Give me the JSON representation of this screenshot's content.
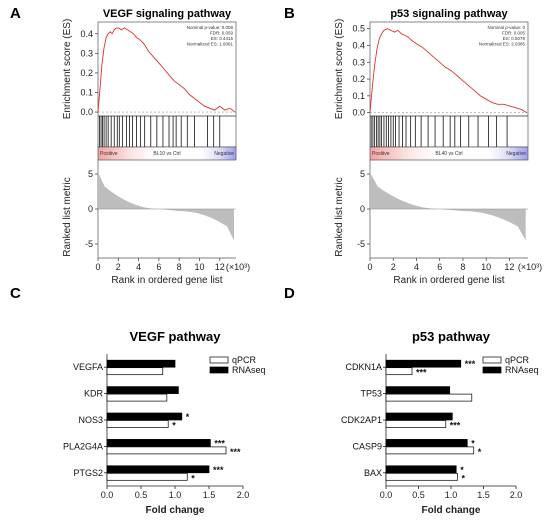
{
  "chart_data": [
    {
      "panel": "A",
      "type": "line",
      "title": "VEGF signaling pathway",
      "ylabel_top": "Enrichment score (ES)",
      "ylabel_bottom": "Ranked list metric",
      "xlabel": "Rank in ordered gene list",
      "x_multiplier": "(×10³)",
      "x_ticks": [
        "0",
        "2",
        "4",
        "6",
        "8",
        "10",
        "12"
      ],
      "es_ticks": [
        "0.0",
        "0.1",
        "0.2",
        "0.3",
        "0.4"
      ],
      "metric_ticks": [
        "5",
        "0",
        "-5"
      ],
      "ylim_es": [
        -0.02,
        0.46
      ],
      "stats": [
        "Nominal p-value: 0.008",
        "FDR: 0.059",
        "ES: 0.4415",
        "Normalized ES: 1.6061"
      ],
      "bar_labels": {
        "left": "Positive",
        "mid": "BL10 vs Ctrl",
        "right": "Negative"
      },
      "es_curve": {
        "x": [
          0,
          0.2,
          0.4,
          0.6,
          0.8,
          1.0,
          1.2,
          1.4,
          1.6,
          1.8,
          2.0,
          2.3,
          2.6,
          2.9,
          3.2,
          3.5,
          3.8,
          4.1,
          4.5,
          5.0,
          5.5,
          6.0,
          6.5,
          7.0,
          7.5,
          8.0,
          8.5,
          9.0,
          9.5,
          10.0,
          10.5,
          11.0,
          11.5,
          12.0,
          12.5,
          13.0,
          13.5
        ],
        "y": [
          0.0,
          0.12,
          0.25,
          0.33,
          0.38,
          0.4,
          0.41,
          0.4,
          0.42,
          0.43,
          0.43,
          0.42,
          0.43,
          0.42,
          0.41,
          0.4,
          0.38,
          0.37,
          0.35,
          0.31,
          0.28,
          0.25,
          0.22,
          0.19,
          0.16,
          0.14,
          0.12,
          0.09,
          0.07,
          0.05,
          0.03,
          0.02,
          0.01,
          0.03,
          0.01,
          0.02,
          0.0
        ]
      },
      "hits": [
        0.15,
        0.3,
        0.45,
        0.6,
        0.8,
        1.0,
        1.3,
        1.6,
        1.9,
        2.1,
        2.4,
        2.8,
        3.1,
        3.4,
        3.8,
        4.2,
        4.6,
        5.2,
        5.8,
        6.4,
        7.0,
        7.4,
        7.7,
        8.2,
        8.8,
        9.5,
        10.8,
        11.4,
        12.0
      ]
    },
    {
      "panel": "B",
      "type": "line",
      "title": "p53 signaling pathway",
      "ylabel_top": "Enrichment score (ES)",
      "ylabel_bottom": "Ranked list metric",
      "xlabel": "Rank in ordered gene list",
      "x_multiplier": "(×10³)",
      "x_ticks": [
        "0",
        "2",
        "4",
        "6",
        "8",
        "10",
        "12"
      ],
      "es_ticks": [
        "0.0",
        "0.1",
        "0.2",
        "0.3",
        "0.4",
        "0.5"
      ],
      "metric_ticks": [
        "5",
        "0",
        "-5"
      ],
      "ylim_es": [
        -0.02,
        0.54
      ],
      "stats": [
        "Nominal p-value: 0",
        "FDR: 0.005",
        "ES: 0.5079",
        "Normalized ES: 2.0385"
      ],
      "bar_labels": {
        "left": "Positive",
        "mid": "BL40 vs Ctrl",
        "right": "Negative"
      },
      "es_curve": {
        "x": [
          0,
          0.2,
          0.4,
          0.6,
          0.8,
          1.0,
          1.2,
          1.5,
          1.8,
          2.1,
          2.4,
          2.7,
          3.0,
          3.3,
          3.6,
          4.0,
          4.5,
          5.0,
          5.5,
          6.0,
          6.5,
          7.0,
          7.5,
          8.0,
          8.5,
          9.0,
          9.5,
          10.0,
          10.5,
          11.0,
          11.5,
          12.0,
          12.5,
          13.0,
          13.5
        ],
        "y": [
          0.0,
          0.15,
          0.28,
          0.38,
          0.44,
          0.47,
          0.49,
          0.5,
          0.49,
          0.48,
          0.49,
          0.47,
          0.46,
          0.45,
          0.43,
          0.41,
          0.39,
          0.36,
          0.33,
          0.3,
          0.27,
          0.25,
          0.22,
          0.19,
          0.16,
          0.13,
          0.1,
          0.08,
          0.06,
          0.05,
          0.05,
          0.04,
          0.03,
          0.02,
          0.0
        ]
      },
      "hits": [
        0.1,
        0.25,
        0.4,
        0.55,
        0.7,
        0.85,
        1.0,
        1.2,
        1.4,
        1.6,
        1.8,
        2.0,
        2.2,
        2.5,
        2.8,
        3.1,
        3.5,
        3.9,
        4.4,
        5.0,
        5.6,
        6.3,
        6.9,
        7.3,
        7.8,
        8.5,
        9.3,
        10.2,
        10.9,
        11.8
      ]
    },
    {
      "panel": "C",
      "type": "bar",
      "orientation": "horizontal",
      "title": "VEGF pathway",
      "xlabel": "Fold change",
      "x_ticks": [
        "0.0",
        "0.5",
        "1.0",
        "1.5",
        "2.0"
      ],
      "xlim": [
        0,
        2.0
      ],
      "categories": [
        "VEGFA",
        "KDR",
        "NOS3",
        "PLA2G4A",
        "PTGS2"
      ],
      "series": [
        {
          "name": "qPCR",
          "color": "#ffffff",
          "values": [
            0.82,
            0.88,
            0.9,
            1.75,
            1.18
          ],
          "stars": [
            "",
            "",
            "*",
            "***",
            "*"
          ]
        },
        {
          "name": "RNAseq",
          "color": "#000000",
          "values": [
            1.0,
            1.05,
            1.1,
            1.52,
            1.5
          ],
          "stars": [
            "",
            "",
            "*",
            "***",
            "***"
          ]
        }
      ]
    },
    {
      "panel": "D",
      "type": "bar",
      "orientation": "horizontal",
      "title": "p53 pathway",
      "xlabel": "Fold change",
      "x_ticks": [
        "0.0",
        "0.5",
        "1.0",
        "1.5",
        "2.0"
      ],
      "xlim": [
        0,
        2.0
      ],
      "categories": [
        "CDKN1A",
        "TP53",
        "CDK2AP1",
        "CASP9",
        "BAX"
      ],
      "series": [
        {
          "name": "qPCR",
          "color": "#ffffff",
          "values": [
            0.4,
            1.32,
            0.92,
            1.35,
            1.1
          ],
          "stars": [
            "***",
            "",
            "***",
            "*",
            "*"
          ]
        },
        {
          "name": "RNAseq",
          "color": "#000000",
          "values": [
            1.15,
            0.98,
            1.02,
            1.25,
            1.08
          ],
          "stars": [
            "***",
            "",
            "",
            "*",
            "*"
          ]
        }
      ]
    }
  ]
}
